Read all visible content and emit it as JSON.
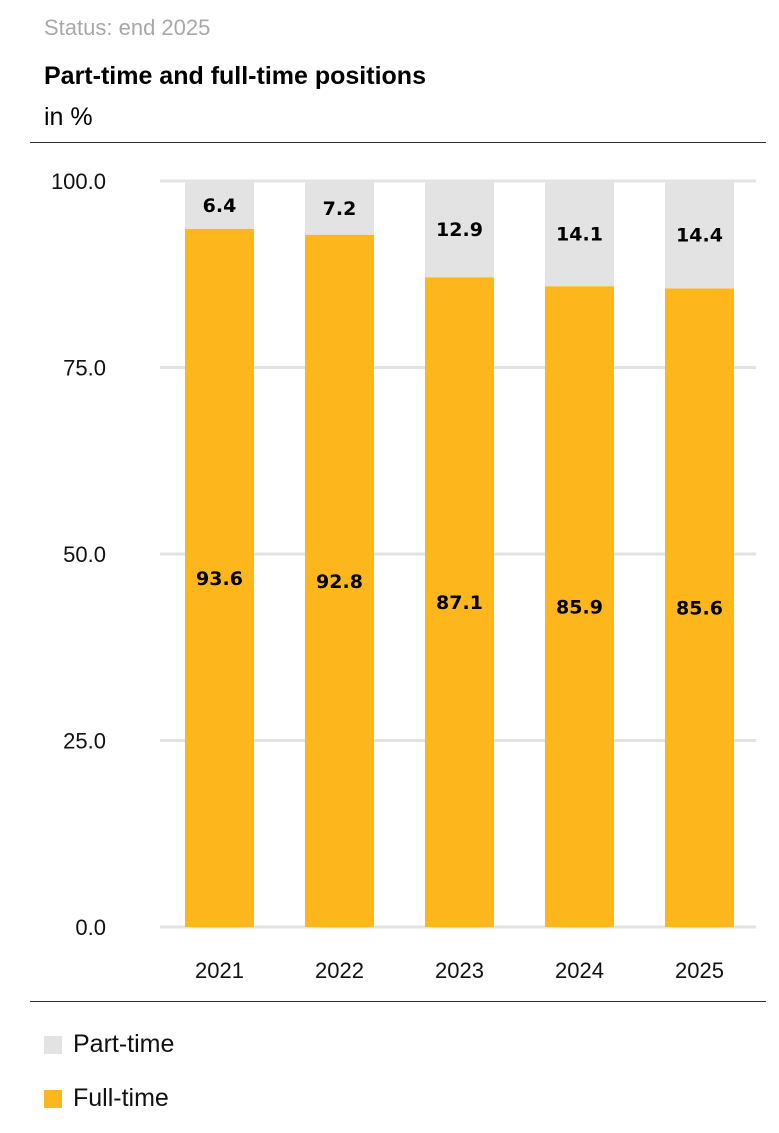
{
  "status": "Status: end 2025",
  "chart_data": {
    "type": "bar",
    "stacked": true,
    "title": "Part-time and full-time positions",
    "subtitle": "in %",
    "xlabel": "",
    "ylabel": "in %",
    "ylim": [
      0,
      100
    ],
    "yticks": [
      "0.0",
      "25.0",
      "50.0",
      "75.0",
      "100.0"
    ],
    "ytick_values": [
      0,
      25,
      50,
      75,
      100
    ],
    "grid": true,
    "categories": [
      "2021",
      "2022",
      "2023",
      "2024",
      "2025"
    ],
    "series": [
      {
        "name": "Full-time",
        "color": "#FDB71C",
        "values": [
          93.6,
          92.8,
          87.1,
          85.9,
          85.6
        ],
        "labels": [
          "93.6",
          "92.8",
          "87.1",
          "85.9",
          "85.6"
        ]
      },
      {
        "name": "Part-time",
        "color": "#E3E3E3",
        "values": [
          6.4,
          7.2,
          12.9,
          14.1,
          14.4
        ],
        "labels": [
          "6.4",
          "7.2",
          "12.9",
          "14.1",
          "14.4"
        ]
      }
    ],
    "legend_position": "bottom-left"
  },
  "legend": [
    {
      "label": "Part-time",
      "color": "#E3E3E3"
    },
    {
      "label": "Full-time",
      "color": "#FDB71C"
    }
  ]
}
